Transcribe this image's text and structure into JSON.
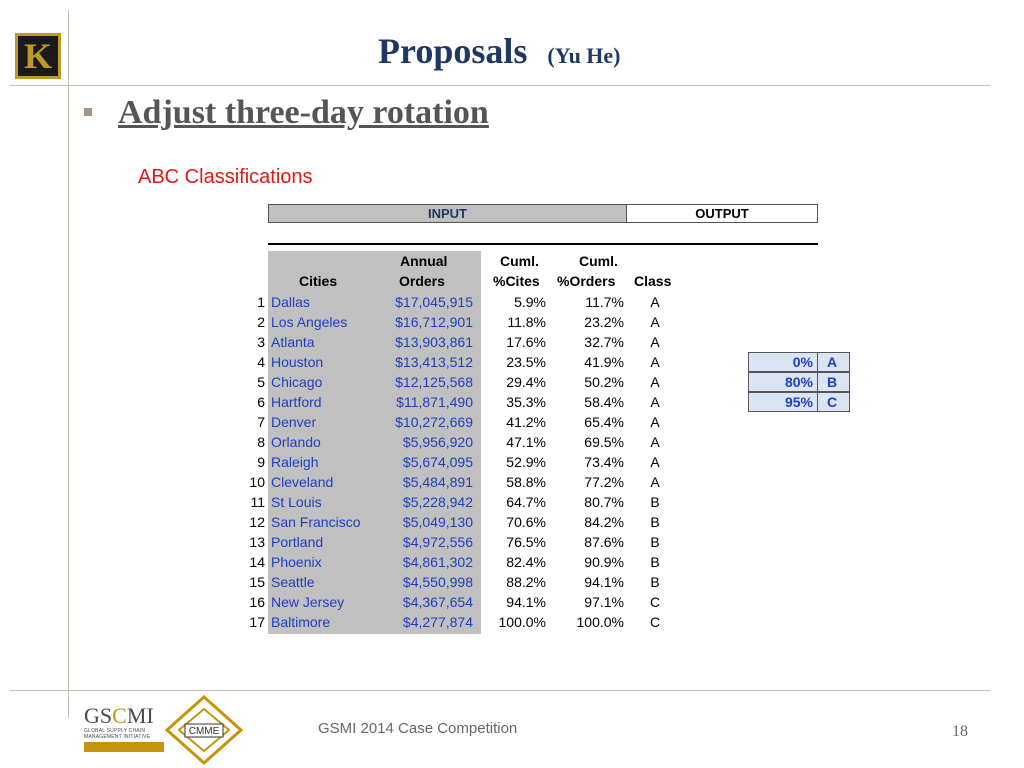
{
  "slide": {
    "title": "Proposals",
    "title_author": "(Yu He)",
    "heading": "Adjust three-day rotation",
    "subheading": "ABC Classifications",
    "logo_letter": "K"
  },
  "table": {
    "input_label": "INPUT",
    "output_label": "OUTPUT",
    "headers": {
      "cities": "Cities",
      "annual_1": "Annual",
      "annual_2": "Orders",
      "cuml_cites_1": "Cuml.",
      "cuml_cites_2": "%Cites",
      "cuml_orders_1": "Cuml.",
      "cuml_orders_2": "%Orders",
      "class": "Class"
    },
    "rows": [
      {
        "idx": "1",
        "city": "Dallas",
        "orders": "$17,045,915",
        "pct_cites": "5.9%",
        "pct_orders": "11.7%",
        "class": "A"
      },
      {
        "idx": "2",
        "city": "Los Angeles",
        "orders": "$16,712,901",
        "pct_cites": "11.8%",
        "pct_orders": "23.2%",
        "class": "A"
      },
      {
        "idx": "3",
        "city": "Atlanta",
        "orders": "$13,903,861",
        "pct_cites": "17.6%",
        "pct_orders": "32.7%",
        "class": "A"
      },
      {
        "idx": "4",
        "city": "Houston",
        "orders": "$13,413,512",
        "pct_cites": "23.5%",
        "pct_orders": "41.9%",
        "class": "A"
      },
      {
        "idx": "5",
        "city": "Chicago",
        "orders": "$12,125,568",
        "pct_cites": "29.4%",
        "pct_orders": "50.2%",
        "class": "A"
      },
      {
        "idx": "6",
        "city": "Hartford",
        "orders": "$11,871,490",
        "pct_cites": "35.3%",
        "pct_orders": "58.4%",
        "class": "A"
      },
      {
        "idx": "7",
        "city": "Denver",
        "orders": "$10,272,669",
        "pct_cites": "41.2%",
        "pct_orders": "65.4%",
        "class": "A"
      },
      {
        "idx": "8",
        "city": "Orlando",
        "orders": "$5,956,920",
        "pct_cites": "47.1%",
        "pct_orders": "69.5%",
        "class": "A"
      },
      {
        "idx": "9",
        "city": "Raleigh",
        "orders": "$5,674,095",
        "pct_cites": "52.9%",
        "pct_orders": "73.4%",
        "class": "A"
      },
      {
        "idx": "10",
        "city": "Cleveland",
        "orders": "$5,484,891",
        "pct_cites": "58.8%",
        "pct_orders": "77.2%",
        "class": "A"
      },
      {
        "idx": "11",
        "city": "St Louis",
        "orders": "$5,228,942",
        "pct_cites": "64.7%",
        "pct_orders": "80.7%",
        "class": "B"
      },
      {
        "idx": "12",
        "city": "San Francisco",
        "orders": "$5,049,130",
        "pct_cites": "70.6%",
        "pct_orders": "84.2%",
        "class": "B"
      },
      {
        "idx": "13",
        "city": "Portland",
        "orders": "$4,972,556",
        "pct_cites": "76.5%",
        "pct_orders": "87.6%",
        "class": "B"
      },
      {
        "idx": "14",
        "city": "Phoenix",
        "orders": "$4,861,302",
        "pct_cites": "82.4%",
        "pct_orders": "90.9%",
        "class": "B"
      },
      {
        "idx": "15",
        "city": "Seattle",
        "orders": "$4,550,998",
        "pct_cites": "88.2%",
        "pct_orders": "94.1%",
        "class": "B"
      },
      {
        "idx": "16",
        "city": "New Jersey",
        "orders": "$4,367,654",
        "pct_cites": "94.1%",
        "pct_orders": "97.1%",
        "class": "C"
      },
      {
        "idx": "17",
        "city": "Baltimore",
        "orders": "$4,277,874",
        "pct_cites": "100.0%",
        "pct_orders": "100.0%",
        "class": "C"
      }
    ],
    "lookup": [
      {
        "pct": "0%",
        "class": "A"
      },
      {
        "pct": "80%",
        "class": "B"
      },
      {
        "pct": "95%",
        "class": "C"
      }
    ]
  },
  "footer": {
    "text": "GSMI 2014 Case Competition",
    "page_number": "18",
    "gscmi_logo_text": "GSCMI",
    "gscmi_tagline": "GLOBAL SUPPLY CHAIN MANAGEMENT INITIATIVE",
    "cmme_logo_text": "CMME"
  },
  "colors": {
    "title": "#1f3864",
    "subheading": "#e01818",
    "table_link_blue": "#1f3fc0",
    "input_shade": "#c0c0c0",
    "lookup_fill": "#dbe4f3",
    "gold": "#c09a28"
  }
}
